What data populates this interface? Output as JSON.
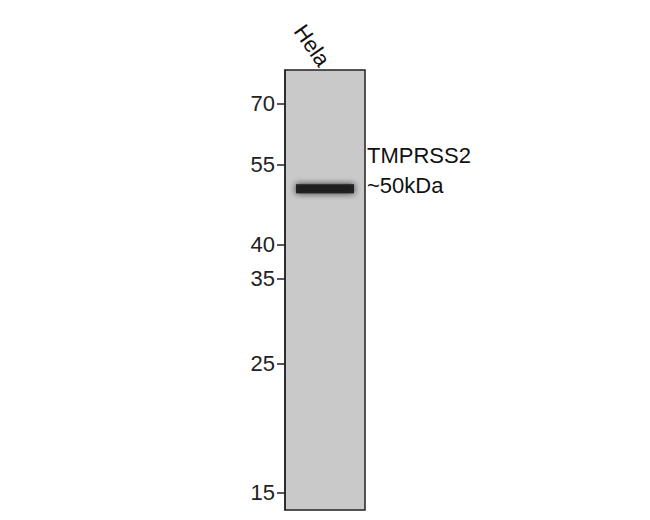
{
  "chart_data": {
    "type": "scatter",
    "categories": [
      "Hela"
    ],
    "values": [
      50
    ],
    "color": "#1c1c1c",
    "marker": "band",
    "log": "y",
    "ylim": [
      14,
      80
    ],
    "yticks": [
      15,
      25,
      35,
      40,
      55,
      70
    ],
    "annotations": [
      "TMPRSS2",
      "~50kDa"
    ]
  }
}
